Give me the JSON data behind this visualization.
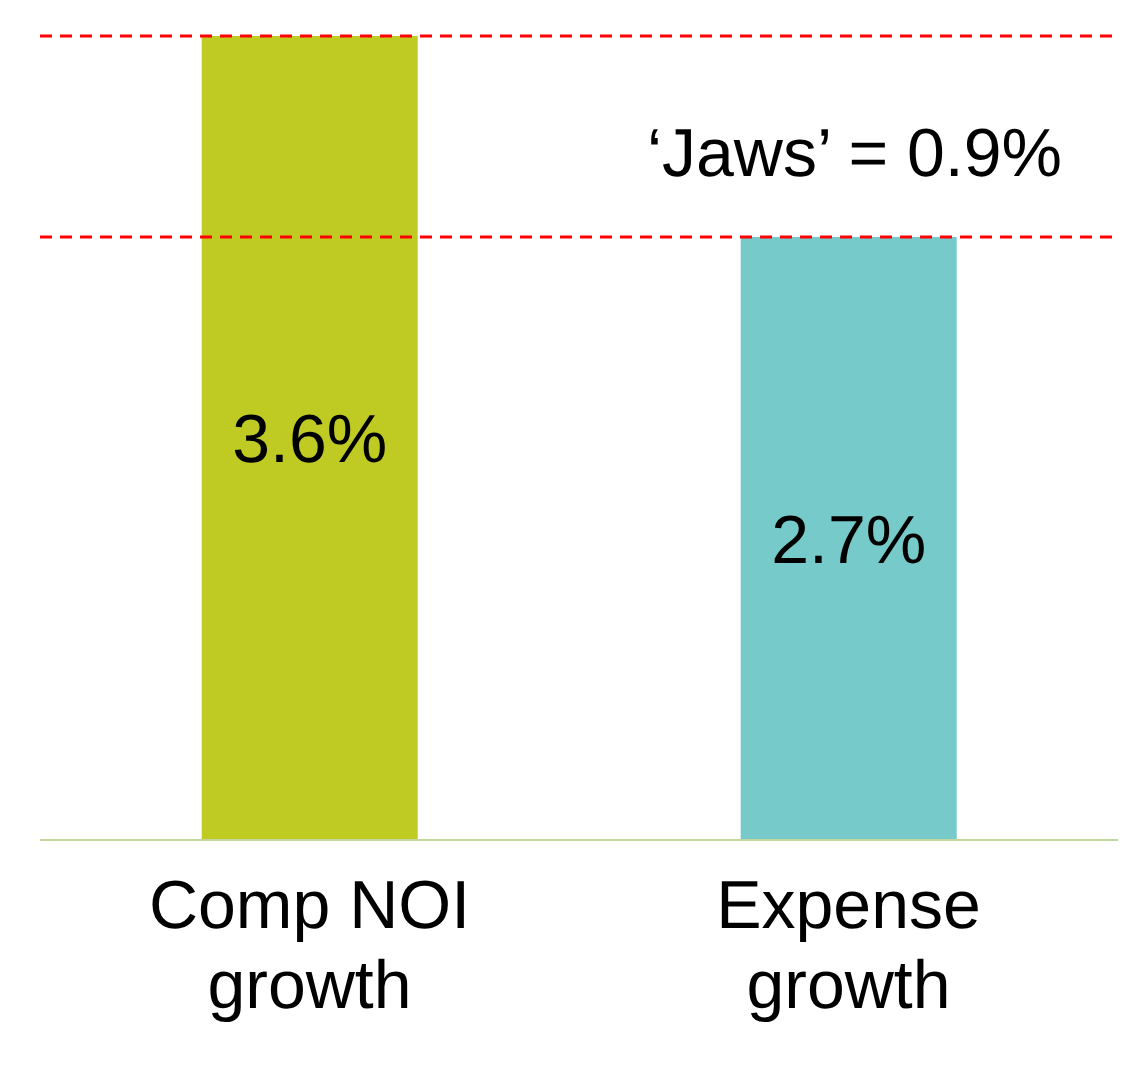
{
  "chart_data": {
    "type": "bar",
    "categories": [
      "Comp NOI growth",
      "Expense growth"
    ],
    "values": [
      3.6,
      2.7
    ],
    "colors": [
      "#bfcb23",
      "#76cac9"
    ],
    "value_labels": [
      "3.6%",
      "2.7%"
    ],
    "ref_lines": [
      {
        "axis": "y",
        "value": 3.6,
        "color": "#ff0000",
        "line_style": "dashed"
      },
      {
        "axis": "y",
        "value": 2.7,
        "color": "#ff0000",
        "line_style": "dashed"
      }
    ],
    "annotations": [
      "‘Jaws’ = 0.9%"
    ]
  }
}
